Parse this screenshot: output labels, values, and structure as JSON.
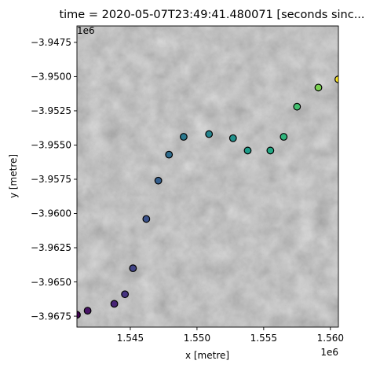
{
  "chart_data": {
    "type": "scatter",
    "title": "time = 2020-05-07T23:49:41.480071 [seconds sinc...",
    "xlabel": "x [metre]",
    "ylabel": "y [metre]",
    "x_offset_label": "1e6",
    "y_offset_label": "1e6",
    "xlim": [
      1.541,
      1.5606
    ],
    "ylim": [
      -3.9683,
      -3.9463
    ],
    "xticks": [
      1.545,
      1.55,
      1.555,
      1.56
    ],
    "xtick_labels": [
      "1.545",
      "1.550",
      "1.555",
      "1.560"
    ],
    "yticks": [
      -3.9475,
      -3.95,
      -3.9525,
      -3.955,
      -3.9575,
      -3.96,
      -3.9625,
      -3.965,
      -3.9675
    ],
    "ytick_labels": [
      "−3.9475",
      "−3.9500",
      "−3.9525",
      "−3.9550",
      "−3.9575",
      "−3.9600",
      "−3.9625",
      "−3.9650",
      "−3.9675"
    ],
    "background": "grayscale satellite image",
    "colormap": "viridis",
    "marker_edge_color": "#000000",
    "points": [
      {
        "x": 1.541,
        "y": -3.9674,
        "color": "#440154"
      },
      {
        "x": 1.5418,
        "y": -3.9671,
        "color": "#471365"
      },
      {
        "x": 1.5438,
        "y": -3.9666,
        "color": "#482475"
      },
      {
        "x": 1.5446,
        "y": -3.9659,
        "color": "#463480"
      },
      {
        "x": 1.5452,
        "y": -3.964,
        "color": "#414487"
      },
      {
        "x": 1.5462,
        "y": -3.9604,
        "color": "#3b528b"
      },
      {
        "x": 1.5471,
        "y": -3.9576,
        "color": "#355f8d"
      },
      {
        "x": 1.5479,
        "y": -3.9557,
        "color": "#2f6c8e"
      },
      {
        "x": 1.549,
        "y": -3.9544,
        "color": "#2a788e"
      },
      {
        "x": 1.5509,
        "y": -3.9542,
        "color": "#25848e"
      },
      {
        "x": 1.5527,
        "y": -3.9545,
        "color": "#21918c"
      },
      {
        "x": 1.5538,
        "y": -3.9554,
        "color": "#1e9c89"
      },
      {
        "x": 1.5555,
        "y": -3.9554,
        "color": "#22a884"
      },
      {
        "x": 1.5565,
        "y": -3.9544,
        "color": "#2fb47c"
      },
      {
        "x": 1.5575,
        "y": -3.9522,
        "color": "#44bf70"
      },
      {
        "x": 1.5591,
        "y": -3.9508,
        "color": "#7ad151"
      },
      {
        "x": 1.5606,
        "y": -3.9502,
        "color": "#fde725"
      }
    ]
  }
}
